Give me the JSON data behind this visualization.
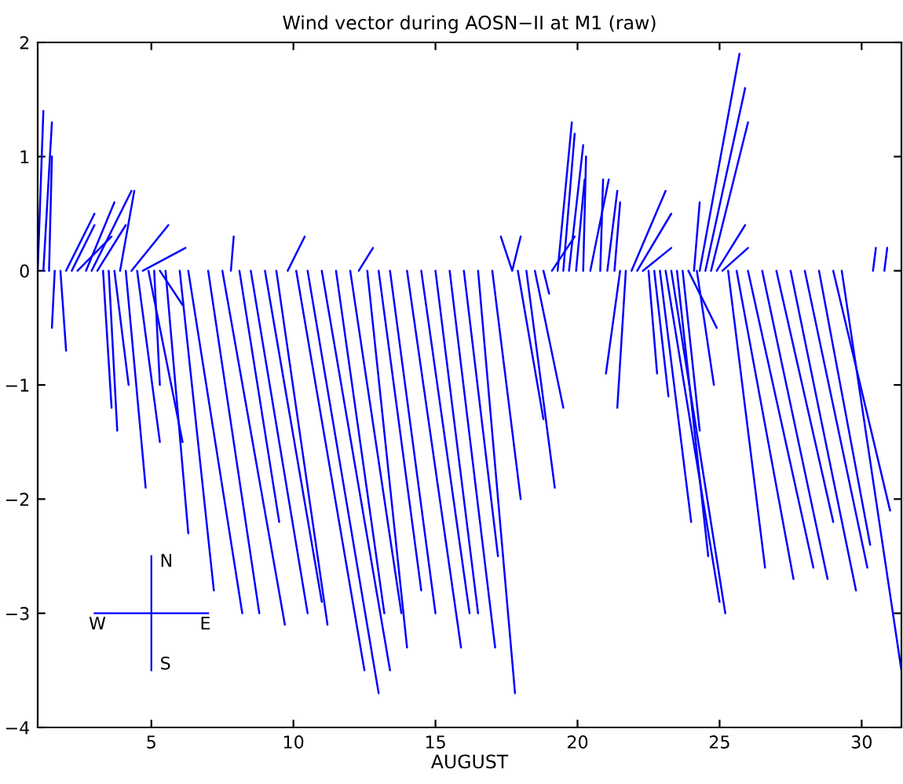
{
  "chart_data": {
    "type": "line",
    "title": "Wind vector during AOSN−II at M1 (raw)",
    "xlabel": "AUGUST",
    "color": "#0000ff",
    "xlim": [
      1,
      31.4
    ],
    "xticks": [
      5,
      10,
      15,
      20,
      25,
      30
    ],
    "ylim": [
      -4,
      2
    ],
    "yticks": [
      -4,
      -3,
      -2,
      -1,
      0,
      1,
      2
    ],
    "grid": false,
    "annotations": [
      "N",
      "S",
      "E",
      "W"
    ],
    "series": [
      {
        "x": [
          1.0,
          1.2
        ],
        "values": [
          0,
          1.4
        ]
      },
      {
        "x": [
          1.2,
          1.5
        ],
        "values": [
          0,
          1.3
        ]
      },
      {
        "x": [
          1.4,
          1.5
        ],
        "values": [
          0,
          1.0
        ]
      },
      {
        "x": [
          1.6,
          1.5
        ],
        "values": [
          0,
          -0.5
        ]
      },
      {
        "x": [
          1.8,
          2.0
        ],
        "values": [
          0,
          -0.7
        ]
      },
      {
        "x": [
          2.0,
          3.0
        ],
        "values": [
          0,
          0.5
        ]
      },
      {
        "x": [
          2.2,
          3.0
        ],
        "values": [
          0,
          0.4
        ]
      },
      {
        "x": [
          2.4,
          3.6
        ],
        "values": [
          0,
          0.3
        ]
      },
      {
        "x": [
          2.7,
          3.7
        ],
        "values": [
          0,
          0.6
        ]
      },
      {
        "x": [
          2.9,
          4.3
        ],
        "values": [
          0,
          0.7
        ]
      },
      {
        "x": [
          3.1,
          4.1
        ],
        "values": [
          0,
          0.4
        ]
      },
      {
        "x": [
          3.3,
          3.6
        ],
        "values": [
          0,
          -1.2
        ]
      },
      {
        "x": [
          3.5,
          3.8
        ],
        "values": [
          0,
          -1.4
        ]
      },
      {
        "x": [
          3.7,
          4.2
        ],
        "values": [
          0,
          -1.0
        ]
      },
      {
        "x": [
          3.9,
          4.4
        ],
        "values": [
          0,
          0.7
        ]
      },
      {
        "x": [
          4.1,
          4.8
        ],
        "values": [
          0,
          -1.9
        ]
      },
      {
        "x": [
          4.3,
          5.6
        ],
        "values": [
          0,
          0.4
        ]
      },
      {
        "x": [
          4.5,
          5.3
        ],
        "values": [
          0,
          -1.5
        ]
      },
      {
        "x": [
          4.7,
          6.2
        ],
        "values": [
          0,
          0.2
        ]
      },
      {
        "x": [
          4.9,
          6.1
        ],
        "values": [
          0,
          -1.5
        ]
      },
      {
        "x": [
          5.1,
          5.3
        ],
        "values": [
          0,
          -1.0
        ]
      },
      {
        "x": [
          5.3,
          6.1
        ],
        "values": [
          0,
          -0.3
        ]
      },
      {
        "x": [
          5.5,
          6.3
        ],
        "values": [
          0,
          -2.3
        ]
      },
      {
        "x": [
          6.0,
          7.2
        ],
        "values": [
          0,
          -2.8
        ]
      },
      {
        "x": [
          6.3,
          8.2
        ],
        "values": [
          0,
          -3.0
        ]
      },
      {
        "x": [
          7.0,
          8.8
        ],
        "values": [
          0,
          -3.0
        ]
      },
      {
        "x": [
          7.5,
          9.7
        ],
        "values": [
          0,
          -3.1
        ]
      },
      {
        "x": [
          7.8,
          7.9
        ],
        "values": [
          0,
          0.3
        ]
      },
      {
        "x": [
          8.1,
          9.5
        ],
        "values": [
          0,
          -2.2
        ]
      },
      {
        "x": [
          8.5,
          10.5
        ],
        "values": [
          0,
          -3.0
        ]
      },
      {
        "x": [
          9.0,
          11.0
        ],
        "values": [
          0,
          -2.9
        ]
      },
      {
        "x": [
          9.4,
          11.2
        ],
        "values": [
          0,
          -3.1
        ]
      },
      {
        "x": [
          9.8,
          10.4
        ],
        "values": [
          0,
          0.3
        ]
      },
      {
        "x": [
          10.1,
          12.5
        ],
        "values": [
          0,
          -3.5
        ]
      },
      {
        "x": [
          10.5,
          13.0
        ],
        "values": [
          0,
          -3.7
        ]
      },
      {
        "x": [
          11.0,
          13.4
        ],
        "values": [
          0,
          -3.5
        ]
      },
      {
        "x": [
          11.5,
          13.2
        ],
        "values": [
          0,
          -3.0
        ]
      },
      {
        "x": [
          12.0,
          13.8
        ],
        "values": [
          0,
          -3.0
        ]
      },
      {
        "x": [
          12.3,
          12.8
        ],
        "values": [
          0,
          0.2
        ]
      },
      {
        "x": [
          12.6,
          14.0
        ],
        "values": [
          0,
          -3.3
        ]
      },
      {
        "x": [
          13.0,
          14.5
        ],
        "values": [
          0,
          -2.8
        ]
      },
      {
        "x": [
          13.4,
          15.0
        ],
        "values": [
          0,
          -3.0
        ]
      },
      {
        "x": [
          14.0,
          15.9
        ],
        "values": [
          0,
          -3.3
        ]
      },
      {
        "x": [
          14.5,
          16.2
        ],
        "values": [
          0,
          -3.0
        ]
      },
      {
        "x": [
          15.0,
          16.5
        ],
        "values": [
          0,
          -3.0
        ]
      },
      {
        "x": [
          15.5,
          17.1
        ],
        "values": [
          0,
          -3.3
        ]
      },
      {
        "x": [
          16.0,
          17.2
        ],
        "values": [
          0,
          -2.5
        ]
      },
      {
        "x": [
          16.5,
          17.8
        ],
        "values": [
          0,
          -3.7
        ]
      },
      {
        "x": [
          17.0,
          18.0
        ],
        "values": [
          0,
          -2.0
        ]
      },
      {
        "x": [
          17.3,
          17.7,
          18.0
        ],
        "values": [
          0.3,
          0,
          0.3
        ]
      },
      {
        "x": [
          17.9,
          18.8
        ],
        "values": [
          0,
          -1.3
        ]
      },
      {
        "x": [
          18.2,
          19.2
        ],
        "values": [
          0,
          -1.9
        ]
      },
      {
        "x": [
          18.5,
          19.5
        ],
        "values": [
          0,
          -1.2
        ]
      },
      {
        "x": [
          18.8,
          19.0
        ],
        "values": [
          0,
          -0.2
        ]
      },
      {
        "x": [
          19.1,
          19.9
        ],
        "values": [
          0,
          0.3
        ]
      },
      {
        "x": [
          19.3,
          19.8
        ],
        "values": [
          0,
          1.3
        ]
      },
      {
        "x": [
          19.5,
          19.9
        ],
        "values": [
          0,
          1.2
        ]
      },
      {
        "x": [
          19.7,
          20.2
        ],
        "values": [
          0,
          1.1
        ]
      },
      {
        "x": [
          19.95,
          20.25
        ],
        "values": [
          0,
          0.8
        ]
      },
      {
        "x": [
          20.2,
          20.3
        ],
        "values": [
          0,
          1.0
        ]
      },
      {
        "x": [
          20.45,
          21.1
        ],
        "values": [
          0,
          0.8
        ]
      },
      {
        "x": [
          20.8,
          20.9
        ],
        "values": [
          0,
          0.8
        ]
      },
      {
        "x": [
          21.05,
          21.4
        ],
        "values": [
          0,
          0.7
        ]
      },
      {
        "x": [
          21.3,
          21.5
        ],
        "values": [
          0,
          0.6
        ]
      },
      {
        "x": [
          21.5,
          21.0
        ],
        "values": [
          0,
          -0.9
        ]
      },
      {
        "x": [
          21.7,
          21.4
        ],
        "values": [
          0,
          -1.2
        ]
      },
      {
        "x": [
          21.9,
          23.1
        ],
        "values": [
          0,
          0.7
        ]
      },
      {
        "x": [
          22.1,
          23.3
        ],
        "values": [
          0,
          0.5
        ]
      },
      {
        "x": [
          22.3,
          23.3
        ],
        "values": [
          0,
          0.2
        ]
      },
      {
        "x": [
          22.5,
          22.8
        ],
        "values": [
          0,
          -0.9
        ]
      },
      {
        "x": [
          22.7,
          23.2
        ],
        "values": [
          0,
          -1.1
        ]
      },
      {
        "x": [
          22.9,
          24.0
        ],
        "values": [
          0,
          -2.2
        ]
      },
      {
        "x": [
          23.1,
          25.0
        ],
        "values": [
          0,
          -2.9
        ]
      },
      {
        "x": [
          23.3,
          25.2
        ],
        "values": [
          0,
          -3.0
        ]
      },
      {
        "x": [
          23.5,
          24.6
        ],
        "values": [
          0,
          -2.5
        ]
      },
      {
        "x": [
          23.7,
          24.3
        ],
        "values": [
          0,
          -1.4
        ]
      },
      {
        "x": [
          23.9,
          24.9
        ],
        "values": [
          0,
          -0.5
        ]
      },
      {
        "x": [
          24.1,
          24.3
        ],
        "values": [
          0,
          0.6
        ]
      },
      {
        "x": [
          24.3,
          25.7
        ],
        "values": [
          0,
          1.9
        ]
      },
      {
        "x": [
          24.5,
          25.9
        ],
        "values": [
          0,
          1.6
        ]
      },
      {
        "x": [
          24.7,
          26.0
        ],
        "values": [
          0,
          1.3
        ]
      },
      {
        "x": [
          24.9,
          25.9
        ],
        "values": [
          0,
          0.4
        ]
      },
      {
        "x": [
          25.1,
          26.0
        ],
        "values": [
          0,
          0.2
        ]
      },
      {
        "x": [
          24.2,
          24.8
        ],
        "values": [
          0,
          -1.0
        ]
      },
      {
        "x": [
          25.3,
          26.6
        ],
        "values": [
          0,
          -2.6
        ]
      },
      {
        "x": [
          25.6,
          27.6
        ],
        "values": [
          0,
          -2.7
        ]
      },
      {
        "x": [
          26.0,
          28.3
        ],
        "values": [
          0,
          -2.6
        ]
      },
      {
        "x": [
          26.5,
          28.8
        ],
        "values": [
          0,
          -2.7
        ]
      },
      {
        "x": [
          27.0,
          29.0
        ],
        "values": [
          0,
          -2.2
        ]
      },
      {
        "x": [
          27.5,
          29.8
        ],
        "values": [
          0,
          -2.8
        ]
      },
      {
        "x": [
          28.0,
          30.2
        ],
        "values": [
          0,
          -2.6
        ]
      },
      {
        "x": [
          28.5,
          30.3
        ],
        "values": [
          0,
          -2.4
        ]
      },
      {
        "x": [
          29.0,
          31.0
        ],
        "values": [
          0,
          -2.1
        ]
      },
      {
        "x": [
          29.3,
          31.4
        ],
        "values": [
          0,
          -3.5
        ]
      },
      {
        "x": [
          30.4,
          30.5
        ],
        "values": [
          0,
          0.2
        ]
      },
      {
        "x": [
          30.8,
          30.9
        ],
        "values": [
          0,
          0.2
        ]
      }
    ]
  }
}
